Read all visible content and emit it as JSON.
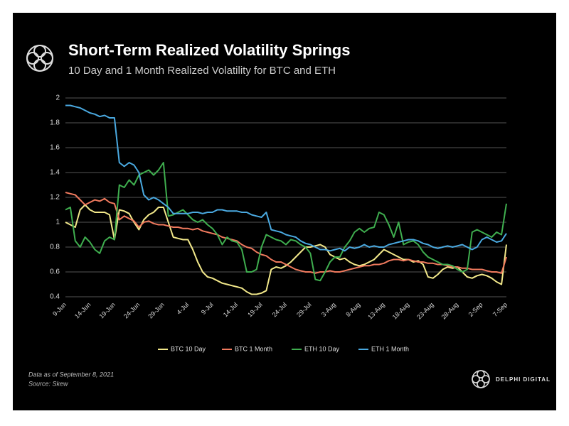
{
  "chart_data": {
    "type": "line",
    "title": "Short-Term Realized Volatility Springs",
    "subtitle": "10 Day and 1 Month Realized Volatility for BTC and ETH",
    "footnote": "Data as of September 8, 2021",
    "source": "Source: Skew",
    "brand": "DELPHI DIGITAL",
    "categories": [
      "9-Jun",
      null,
      null,
      null,
      null,
      "14-Jun",
      null,
      null,
      null,
      null,
      "19-Jun",
      null,
      null,
      null,
      null,
      "24-Jun",
      null,
      null,
      null,
      null,
      "29-Jun",
      null,
      null,
      null,
      null,
      "4-Jul",
      null,
      null,
      null,
      null,
      "9-Jul",
      null,
      null,
      null,
      null,
      "14-Jul",
      null,
      null,
      null,
      null,
      "19-Jul",
      null,
      null,
      null,
      null,
      "24-Jul",
      null,
      null,
      null,
      null,
      "29-Jul",
      null,
      null,
      null,
      null,
      "3-Aug",
      null,
      null,
      null,
      null,
      "8-Aug",
      null,
      null,
      null,
      null,
      "13-Aug",
      null,
      null,
      null,
      null,
      "18-Aug",
      null,
      null,
      null,
      null,
      "23-Aug",
      null,
      null,
      null,
      null,
      "28-Aug",
      null,
      null,
      null,
      null,
      "2-Sep",
      null,
      null,
      null,
      null,
      "7-Sep"
    ],
    "series": [
      {
        "name": "BTC 10 Day",
        "color": "#f2e88a",
        "values": [
          1.0,
          0.98,
          0.96,
          1.1,
          1.14,
          1.1,
          1.08,
          1.08,
          1.08,
          1.06,
          0.86,
          1.1,
          1.09,
          1.07,
          1.0,
          0.94,
          1.02,
          1.06,
          1.08,
          1.12,
          1.12,
          1.0,
          0.88,
          0.87,
          0.86,
          0.86,
          0.78,
          0.68,
          0.6,
          0.56,
          0.55,
          0.53,
          0.51,
          0.5,
          0.49,
          0.48,
          0.47,
          0.44,
          0.42,
          0.42,
          0.43,
          0.45,
          0.62,
          0.64,
          0.63,
          0.65,
          0.68,
          0.72,
          0.76,
          0.8,
          0.8,
          0.81,
          0.82,
          0.8,
          0.74,
          0.72,
          0.7,
          0.71,
          0.68,
          0.66,
          0.65,
          0.66,
          0.68,
          0.7,
          0.74,
          0.78,
          0.76,
          0.74,
          0.72,
          0.7,
          0.7,
          0.68,
          0.69,
          0.66,
          0.56,
          0.55,
          0.58,
          0.62,
          0.64,
          0.63,
          0.64,
          0.6,
          0.56,
          0.55,
          0.57,
          0.58,
          0.57,
          0.55,
          0.52,
          0.5,
          0.82
        ]
      },
      {
        "name": "BTC 1 Month",
        "color": "#f07a5e",
        "values": [
          1.24,
          1.23,
          1.22,
          1.18,
          1.14,
          1.16,
          1.18,
          1.17,
          1.19,
          1.16,
          1.15,
          1.02,
          1.05,
          1.03,
          1.01,
          0.96,
          1.0,
          1.01,
          0.99,
          0.98,
          0.98,
          0.97,
          0.96,
          0.96,
          0.95,
          0.95,
          0.94,
          0.95,
          0.93,
          0.92,
          0.91,
          0.9,
          0.88,
          0.87,
          0.86,
          0.85,
          0.82,
          0.8,
          0.79,
          0.76,
          0.74,
          0.73,
          0.7,
          0.68,
          0.68,
          0.66,
          0.64,
          0.62,
          0.61,
          0.6,
          0.6,
          0.59,
          0.6,
          0.6,
          0.61,
          0.6,
          0.6,
          0.61,
          0.62,
          0.63,
          0.64,
          0.65,
          0.65,
          0.66,
          0.66,
          0.67,
          0.69,
          0.7,
          0.7,
          0.69,
          0.7,
          0.69,
          0.68,
          0.68,
          0.67,
          0.67,
          0.66,
          0.66,
          0.65,
          0.64,
          0.64,
          0.63,
          0.63,
          0.62,
          0.62,
          0.62,
          0.61,
          0.6,
          0.6,
          0.59,
          0.72
        ]
      },
      {
        "name": "ETH 10 Day",
        "color": "#3fae4f",
        "values": [
          1.1,
          1.12,
          0.85,
          0.8,
          0.88,
          0.84,
          0.78,
          0.75,
          0.85,
          0.88,
          0.86,
          1.3,
          1.28,
          1.34,
          1.3,
          1.38,
          1.4,
          1.42,
          1.38,
          1.42,
          1.48,
          1.05,
          1.06,
          1.08,
          1.1,
          1.06,
          1.02,
          1.0,
          1.02,
          0.98,
          0.95,
          0.9,
          0.82,
          0.88,
          0.85,
          0.84,
          0.78,
          0.6,
          0.6,
          0.62,
          0.8,
          0.9,
          0.88,
          0.86,
          0.85,
          0.82,
          0.86,
          0.85,
          0.82,
          0.8,
          0.75,
          0.54,
          0.53,
          0.6,
          0.68,
          0.72,
          0.72,
          0.8,
          0.85,
          0.92,
          0.95,
          0.92,
          0.95,
          0.96,
          1.08,
          1.06,
          0.98,
          0.88,
          1.0,
          0.82,
          0.84,
          0.85,
          0.82,
          0.76,
          0.72,
          0.7,
          0.68,
          0.66,
          0.66,
          0.65,
          0.62,
          0.6,
          0.62,
          0.92,
          0.94,
          0.92,
          0.9,
          0.88,
          0.92,
          0.9,
          1.15
        ]
      },
      {
        "name": "ETH 1 Month",
        "color": "#4aa9e0",
        "values": [
          1.94,
          1.94,
          1.93,
          1.92,
          1.9,
          1.88,
          1.87,
          1.85,
          1.86,
          1.84,
          1.84,
          1.48,
          1.45,
          1.48,
          1.46,
          1.4,
          1.22,
          1.18,
          1.2,
          1.18,
          1.15,
          1.12,
          1.07,
          1.07,
          1.07,
          1.07,
          1.08,
          1.08,
          1.07,
          1.08,
          1.08,
          1.1,
          1.1,
          1.09,
          1.09,
          1.09,
          1.08,
          1.08,
          1.06,
          1.05,
          1.04,
          1.08,
          0.94,
          0.93,
          0.92,
          0.9,
          0.89,
          0.88,
          0.85,
          0.83,
          0.82,
          0.8,
          0.78,
          0.78,
          0.77,
          0.78,
          0.79,
          0.77,
          0.8,
          0.79,
          0.8,
          0.82,
          0.8,
          0.81,
          0.8,
          0.8,
          0.82,
          0.83,
          0.84,
          0.85,
          0.86,
          0.86,
          0.85,
          0.83,
          0.82,
          0.8,
          0.79,
          0.8,
          0.81,
          0.8,
          0.81,
          0.82,
          0.8,
          0.78,
          0.8,
          0.86,
          0.88,
          0.86,
          0.84,
          0.85,
          0.91
        ]
      }
    ],
    "ylim": [
      0.4,
      2
    ],
    "yticks": [
      0.4,
      0.6,
      0.8,
      1,
      1.2,
      1.4,
      1.6,
      1.8,
      2
    ],
    "grid": true,
    "legend": "bottom"
  }
}
